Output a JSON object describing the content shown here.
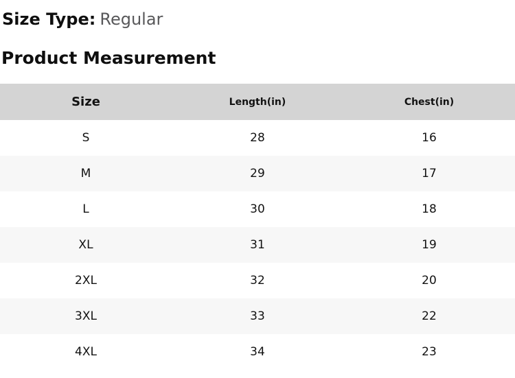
{
  "page": {
    "size_type_label": "Size Type:",
    "size_type_value": "Regular",
    "section_title": "Product Measurement"
  },
  "table": {
    "columns": [
      "Size",
      "Length(in)",
      "Chest(in)"
    ],
    "rows": [
      {
        "size": "S",
        "length": "28",
        "chest": "16"
      },
      {
        "size": "M",
        "length": "29",
        "chest": "17"
      },
      {
        "size": "L",
        "length": "30",
        "chest": "18"
      },
      {
        "size": "XL",
        "length": "31",
        "chest": "19"
      },
      {
        "size": "2XL",
        "length": "32",
        "chest": "20"
      },
      {
        "size": "3XL",
        "length": "33",
        "chest": "22"
      },
      {
        "size": "4XL",
        "length": "34",
        "chest": "23"
      }
    ]
  },
  "colors": {
    "header_bg": "#d4d4d4",
    "stripe_bg": "#f7f7f7",
    "text": "#121212",
    "muted_text": "#58585a"
  }
}
